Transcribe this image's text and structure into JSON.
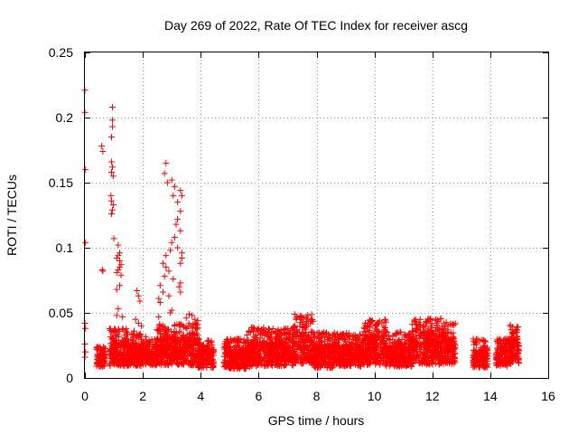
{
  "chart_data": {
    "type": "scatter",
    "title": "Day 269 of 2022, Rate Of TEC Index for receiver ascg",
    "xlabel": "GPS time / hours",
    "ylabel": "ROTI / TECUs",
    "xlim": [
      0,
      16
    ],
    "ylim": [
      0,
      0.25
    ],
    "grid": true,
    "marker": "+",
    "color": "#ff0000",
    "x_ticks": [
      0,
      2,
      4,
      6,
      8,
      10,
      12,
      14,
      16
    ],
    "x_tick_labels": [
      "0",
      "2",
      "4",
      "6",
      "8",
      "10",
      "12",
      "14",
      "16"
    ],
    "y_ticks": [
      0,
      0.05,
      0.1,
      0.15,
      0.2,
      0.25
    ],
    "y_tick_labels": [
      "0",
      "0.05",
      "0.1",
      "0.15",
      "0.2",
      "0.25"
    ],
    "series": [
      {
        "name": "ROTI",
        "points": [
          [
            0.0,
            0.221
          ],
          [
            0.0,
            0.204
          ],
          [
            0.02,
            0.16
          ],
          [
            0.02,
            0.104
          ],
          [
            0.0,
            0.042
          ],
          [
            0.02,
            0.038
          ],
          [
            0.0,
            0.026
          ],
          [
            0.02,
            0.02
          ],
          [
            0.0,
            0.016
          ],
          [
            0.58,
            0.178
          ],
          [
            0.62,
            0.174
          ],
          [
            0.6,
            0.083
          ],
          [
            0.62,
            0.082
          ],
          [
            0.95,
            0.208
          ],
          [
            0.95,
            0.198
          ],
          [
            0.95,
            0.193
          ],
          [
            0.92,
            0.185
          ],
          [
            0.92,
            0.166
          ],
          [
            0.95,
            0.162
          ],
          [
            0.92,
            0.158
          ],
          [
            0.98,
            0.155
          ],
          [
            0.9,
            0.14
          ],
          [
            0.92,
            0.136
          ],
          [
            0.98,
            0.133
          ],
          [
            0.95,
            0.129
          ],
          [
            0.92,
            0.126
          ],
          [
            1.0,
            0.107
          ],
          [
            1.15,
            0.102
          ],
          [
            1.2,
            0.096
          ],
          [
            1.15,
            0.094
          ],
          [
            1.1,
            0.092
          ],
          [
            1.2,
            0.09
          ],
          [
            1.25,
            0.087
          ],
          [
            1.2,
            0.085
          ],
          [
            1.15,
            0.083
          ],
          [
            1.1,
            0.081
          ],
          [
            1.25,
            0.079
          ],
          [
            1.2,
            0.071
          ],
          [
            1.1,
            0.068
          ],
          [
            1.15,
            0.053
          ],
          [
            1.1,
            0.048
          ],
          [
            1.3,
            0.047
          ],
          [
            1.8,
            0.067
          ],
          [
            1.85,
            0.063
          ],
          [
            1.9,
            0.059
          ],
          [
            1.75,
            0.045
          ],
          [
            1.85,
            0.042
          ],
          [
            1.95,
            0.04
          ],
          [
            1.7,
            0.036
          ],
          [
            2.8,
            0.165
          ],
          [
            2.75,
            0.157
          ],
          [
            2.85,
            0.15
          ],
          [
            3.0,
            0.152
          ],
          [
            3.1,
            0.147
          ],
          [
            3.3,
            0.144
          ],
          [
            3.35,
            0.14
          ],
          [
            3.05,
            0.14
          ],
          [
            3.2,
            0.135
          ],
          [
            3.3,
            0.128
          ],
          [
            3.2,
            0.122
          ],
          [
            3.15,
            0.118
          ],
          [
            3.3,
            0.113
          ],
          [
            3.1,
            0.108
          ],
          [
            3.0,
            0.104
          ],
          [
            3.2,
            0.1
          ],
          [
            3.35,
            0.096
          ],
          [
            2.95,
            0.098
          ],
          [
            3.35,
            0.092
          ],
          [
            3.3,
            0.088
          ],
          [
            2.8,
            0.094
          ],
          [
            2.7,
            0.088
          ],
          [
            2.8,
            0.085
          ],
          [
            2.9,
            0.082
          ],
          [
            2.75,
            0.078
          ],
          [
            3.05,
            0.076
          ],
          [
            3.3,
            0.073
          ],
          [
            3.25,
            0.07
          ],
          [
            3.3,
            0.066
          ],
          [
            2.6,
            0.071
          ],
          [
            2.7,
            0.066
          ],
          [
            2.55,
            0.061
          ],
          [
            2.9,
            0.063
          ],
          [
            2.6,
            0.058
          ],
          [
            3.0,
            0.052
          ],
          [
            2.95,
            0.05
          ],
          [
            2.55,
            0.047
          ],
          [
            3.6,
            0.049
          ],
          [
            3.7,
            0.048
          ],
          [
            3.5,
            0.046
          ],
          [
            3.8,
            0.045
          ],
          [
            3.9,
            0.044
          ]
        ],
        "bands": [
          {
            "x": [
              0.4,
              0.7
            ],
            "ymin": 0.006,
            "ymax": 0.024
          },
          {
            "x": [
              0.85,
              1.5
            ],
            "ymin": 0.004,
            "ymax": 0.038
          },
          {
            "x": [
              1.5,
              2.1
            ],
            "ymin": 0.005,
            "ymax": 0.034
          },
          {
            "x": [
              2.1,
              2.45
            ],
            "ymin": 0.006,
            "ymax": 0.03
          },
          {
            "x": [
              2.45,
              3.9
            ],
            "ymin": 0.004,
            "ymax": 0.042
          },
          {
            "x": [
              3.9,
              4.45
            ],
            "ymin": 0.004,
            "ymax": 0.03
          },
          {
            "x": [
              4.8,
              5.6
            ],
            "ymin": 0.003,
            "ymax": 0.03
          },
          {
            "x": [
              5.6,
              6.2
            ],
            "ymin": 0.003,
            "ymax": 0.04
          },
          {
            "x": [
              6.2,
              7.2
            ],
            "ymin": 0.004,
            "ymax": 0.038
          },
          {
            "x": [
              7.2,
              7.9
            ],
            "ymin": 0.004,
            "ymax": 0.049
          },
          {
            "x": [
              7.9,
              8.6
            ],
            "ymin": 0.003,
            "ymax": 0.035
          },
          {
            "x": [
              8.6,
              9.6
            ],
            "ymin": 0.004,
            "ymax": 0.035
          },
          {
            "x": [
              9.6,
              10.4
            ],
            "ymin": 0.004,
            "ymax": 0.045
          },
          {
            "x": [
              10.4,
              11.3
            ],
            "ymin": 0.004,
            "ymax": 0.036
          },
          {
            "x": [
              11.3,
              12.3
            ],
            "ymin": 0.004,
            "ymax": 0.046
          },
          {
            "x": [
              12.3,
              12.8
            ],
            "ymin": 0.005,
            "ymax": 0.043
          },
          {
            "x": [
              13.4,
              13.9
            ],
            "ymin": 0.004,
            "ymax": 0.03
          },
          {
            "x": [
              14.2,
              14.6
            ],
            "ymin": 0.005,
            "ymax": 0.03
          },
          {
            "x": [
              14.6,
              15.0
            ],
            "ymin": 0.005,
            "ymax": 0.041
          }
        ]
      }
    ]
  }
}
